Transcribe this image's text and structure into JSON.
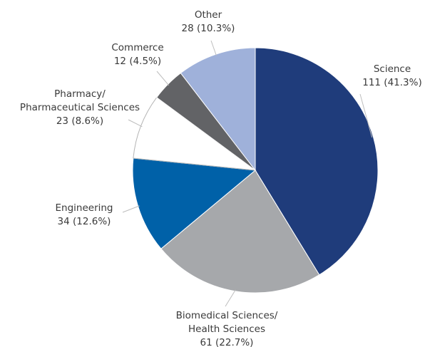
{
  "chart_data": {
    "type": "pie",
    "categories": [
      "Science",
      "Biomedical Sciences/Health Sciences",
      "Engineering",
      "Pharmacy/Pharmaceutical Sciences",
      "Commerce",
      "Other"
    ],
    "values": [
      111,
      61,
      34,
      23,
      12,
      28
    ],
    "value_labels": [
      "111 (41.3%)",
      "61 (22.7%)",
      "34 (12.6%)",
      "23 (8.6%)",
      "12 (4.5%)",
      "28 (10.3%)"
    ],
    "colors": [
      "#1f3c7b",
      "#a6a8ab",
      "#0061a8",
      "#ffffff",
      "#626366",
      "#9fb1da"
    ]
  }
}
